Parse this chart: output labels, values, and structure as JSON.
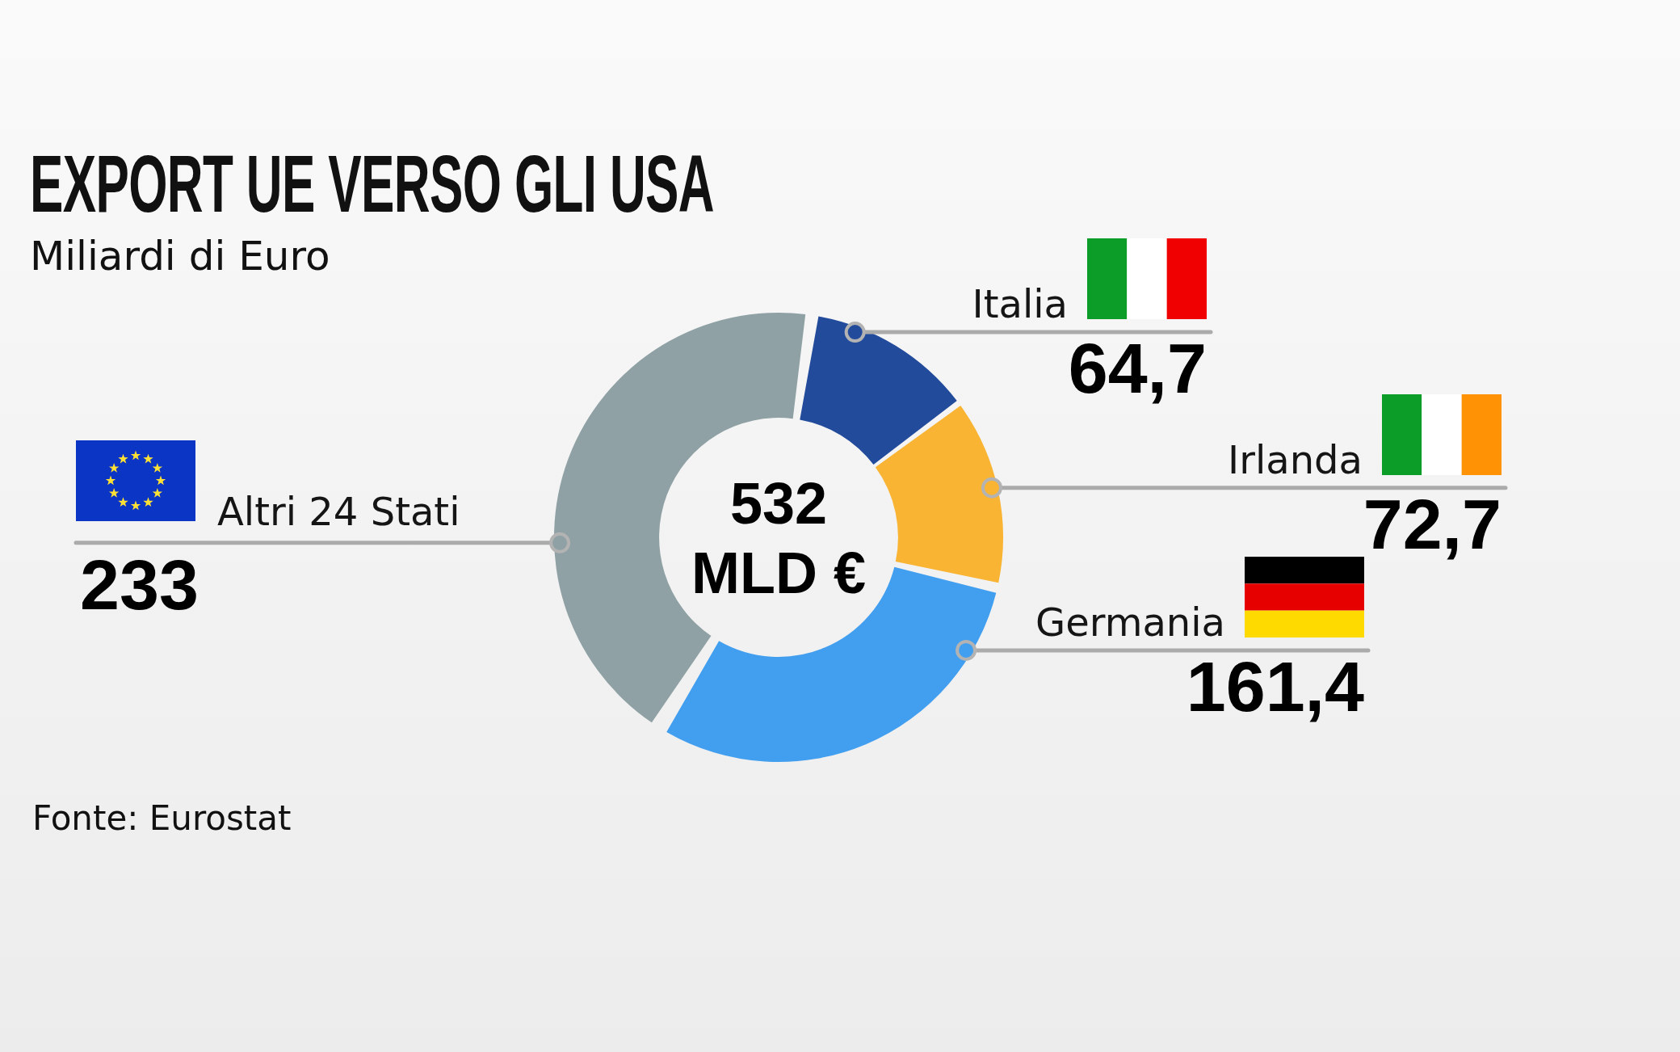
{
  "chart_data": {
    "type": "donut",
    "title": "EXPORT UE VERSO GLI USA",
    "subtitle": "Miliardi di Euro",
    "categories": [
      "Italia",
      "Irlanda",
      "Germania",
      "Altri 24 Stati"
    ],
    "values": [
      64.7,
      72.7,
      161.4,
      233
    ],
    "colors": [
      "#234b9c",
      "#f9b434",
      "#429ff0",
      "#8fa1a4"
    ],
    "value_labels": [
      "64,7",
      "72,7",
      "161,4",
      "233"
    ],
    "annotations": [
      "532 MLD €",
      "Fonte: Eurostat"
    ]
  }
}
